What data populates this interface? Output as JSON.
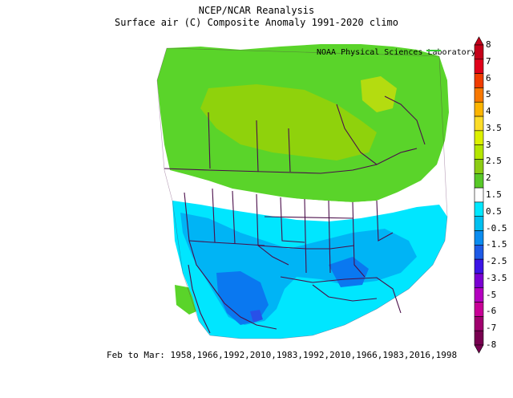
{
  "title_line1": "NCEP/NCAR Reanalysis",
  "title_line2": "Surface air (C) Composite Anomaly 1991-2020 climo",
  "credit": "NOAA Physical Sciences Laboratory",
  "footer": "Feb to Mar: 1958,1966,1992,2010,1983,1992,2010,1966,1983,2016,1998",
  "colorbar": {
    "labels": [
      "8",
      "7",
      "6",
      "5",
      "4",
      "3.5",
      "3",
      "2.5",
      "2",
      "1.5",
      "0.5",
      "-0.5",
      "-1.5",
      "-2.5",
      "-3.5",
      "-5",
      "-6",
      "-7",
      "-8"
    ],
    "colors": [
      "#c4001a",
      "#e0001a",
      "#f03c00",
      "#f87800",
      "#fcb400",
      "#fcdc28",
      "#dcf000",
      "#b4e600",
      "#8ccc14",
      "#58c828",
      "#ffffff",
      "#00e8ff",
      "#00c0f0",
      "#0a8cf0",
      "#1e5ae6",
      "#3c14e6",
      "#7a00d2",
      "#b400c0",
      "#c80096",
      "#a0006e",
      "#780050"
    ]
  },
  "colors": {
    "warm_1": "#5ad42a",
    "warm_2": "#8fd20c",
    "warm_3": "#b4dc10",
    "neutral": "#ffffff",
    "cool_1": "#00e6ff",
    "cool_2": "#00b4f5",
    "cool_3": "#0a78f0",
    "cool_4": "#2850e8",
    "boundary": "#4a0e4a"
  }
}
